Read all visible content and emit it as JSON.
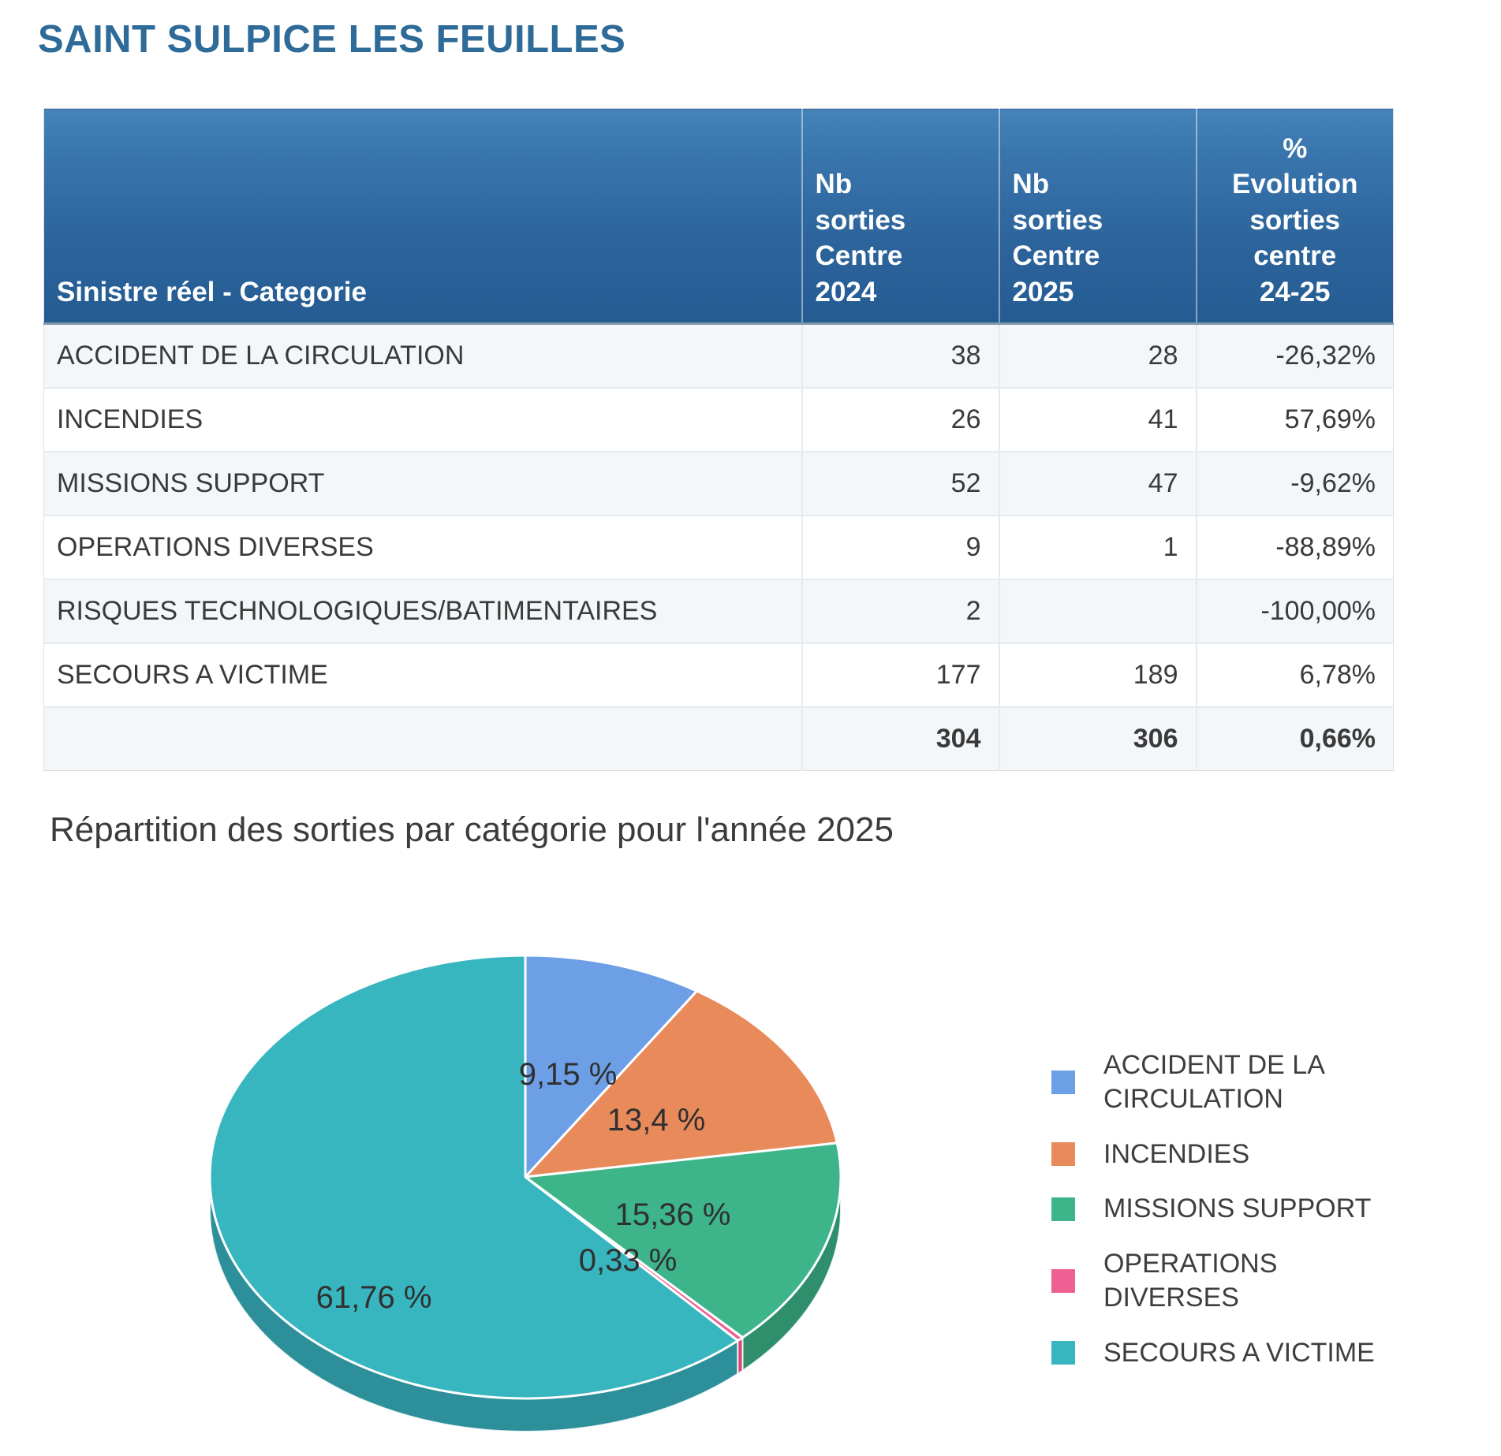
{
  "page": {
    "title": "SAINT SULPICE LES FEUILLES"
  },
  "table": {
    "columns": {
      "category": "Sinistre réel - Categorie",
      "n2024": [
        "Nb",
        "sorties",
        "Centre",
        "2024"
      ],
      "n2025": [
        "Nb",
        "sorties",
        "Centre",
        "2025"
      ],
      "evolution": [
        "%",
        "Evolution",
        "sorties",
        "centre",
        "24-25"
      ]
    },
    "rows": [
      {
        "category": "ACCIDENT DE LA CIRCULATION",
        "n2024": "38",
        "n2025": "28",
        "evolution": "-26,32%"
      },
      {
        "category": "INCENDIES",
        "n2024": "26",
        "n2025": "41",
        "evolution": "57,69%"
      },
      {
        "category": "MISSIONS SUPPORT",
        "n2024": "52",
        "n2025": "47",
        "evolution": "-9,62%"
      },
      {
        "category": "OPERATIONS DIVERSES",
        "n2024": "9",
        "n2025": "1",
        "evolution": "-88,89%"
      },
      {
        "category": "RISQUES TECHNOLOGIQUES/BATIMENTAIRES",
        "n2024": "2",
        "n2025": "",
        "evolution": "-100,00%"
      },
      {
        "category": "SECOURS A VICTIME",
        "n2024": "177",
        "n2025": "189",
        "evolution": "6,78%"
      }
    ],
    "totals": {
      "category": "",
      "n2024": "304",
      "n2025": "306",
      "evolution": "0,66%"
    }
  },
  "chart": {
    "heading": "Répartition des sorties par catégorie pour l'année 2025"
  },
  "chart_data": {
    "type": "pie",
    "title": "Répartition des sorties par catégorie pour l'année 2025",
    "unit": "%",
    "start_angle_deg": 0,
    "direction": "clockwise",
    "legend_position": "right",
    "labels_on_slices": true,
    "effect_3d": true,
    "slices": [
      {
        "label": "ACCIDENT DE LA CIRCULATION",
        "value": 9.15,
        "display": "9,15 %",
        "color": "#6d9fe6",
        "dark": "#4f7fc4"
      },
      {
        "label": "INCENDIES",
        "value": 13.4,
        "display": "13,4 %",
        "color": "#e98a5b",
        "dark": "#c96a3e"
      },
      {
        "label": "MISSIONS SUPPORT",
        "value": 15.36,
        "display": "15,36 %",
        "color": "#3db489",
        "dark": "#2f8e6b"
      },
      {
        "label": "OPERATIONS DIVERSES",
        "value": 0.33,
        "display": "0,33 %",
        "color": "#ee5f92",
        "dark": "#cf4a75"
      },
      {
        "label": "SECOURS A VICTIME",
        "value": 61.76,
        "display": "61,76 %",
        "color": "#38b6c0",
        "dark": "#2d8f99"
      }
    ],
    "colors": {
      "title_blue": "#2e6b98",
      "header_gradient_top": "#4583b8",
      "header_gradient_bottom": "#245c92",
      "row_alt": "#f4f7f9"
    }
  }
}
